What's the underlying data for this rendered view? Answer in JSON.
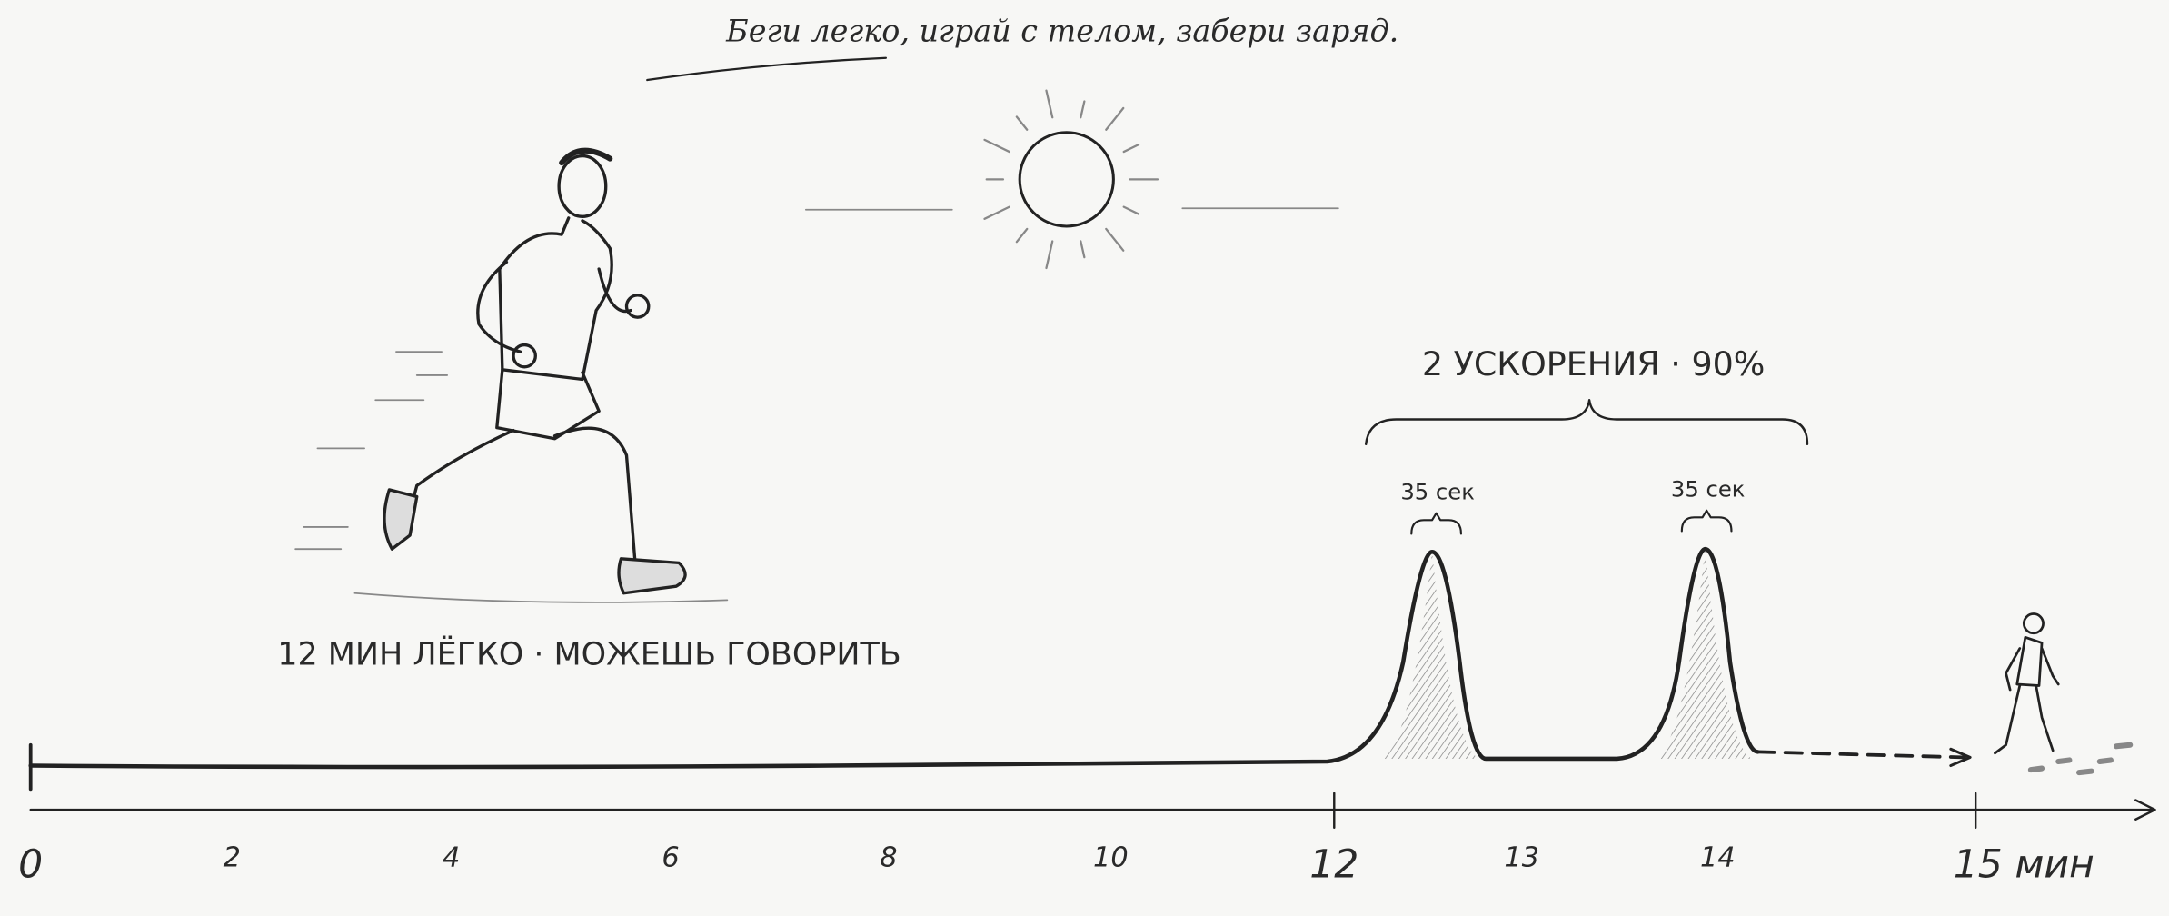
{
  "header": {
    "title": "Беги легко, играй с телом, забери заряд."
  },
  "annotations": {
    "easy": "12 МИН ЛЁГКО · МОЖЕШЬ ГОВОРИТЬ",
    "strides": "2 УСКОРЕНИЯ · 90%",
    "stride_1": "35 сек",
    "stride_2": "35 сек"
  },
  "axis": {
    "ticks": [
      "0",
      "2",
      "4",
      "6",
      "8",
      "10",
      "12",
      "13",
      "14",
      "15 мин"
    ]
  }
}
